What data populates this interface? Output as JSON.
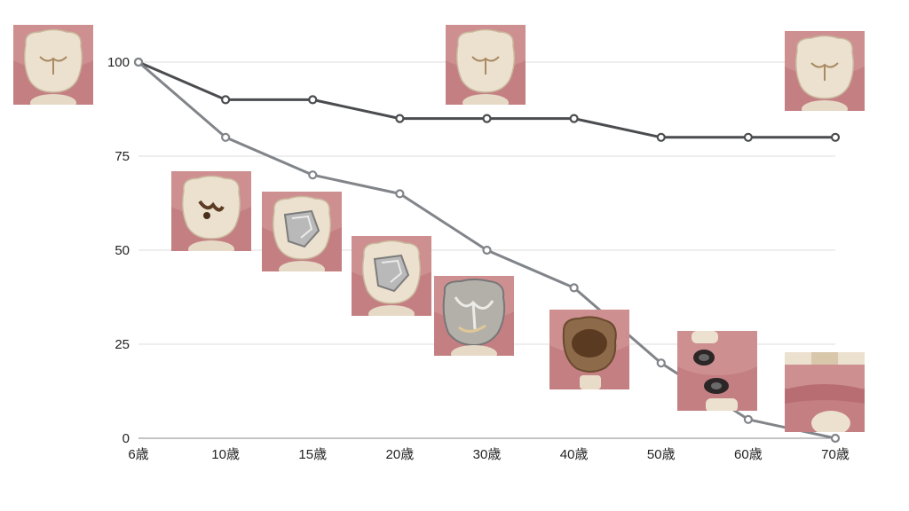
{
  "chart_data": {
    "type": "line",
    "categories": [
      "6歳",
      "10歳",
      "15歳",
      "20歳",
      "30歳",
      "40歳",
      "50歳",
      "60歳",
      "70歳"
    ],
    "ylim": [
      0,
      100
    ],
    "yticks": [
      0,
      25,
      50,
      75,
      100
    ],
    "grid": true,
    "series": [
      {
        "color": "#4a4c4f",
        "values": [
          100,
          90,
          90,
          85,
          85,
          85,
          80,
          80,
          80
        ]
      },
      {
        "color": "#818589",
        "values": [
          100,
          80,
          70,
          65,
          50,
          40,
          20,
          5,
          0
        ]
      }
    ],
    "photos": [
      {
        "name": "healthy-molar-6",
        "state": "healthy"
      },
      {
        "name": "healthy-molar-30",
        "state": "healthy"
      },
      {
        "name": "healthy-molar-70",
        "state": "healthy"
      },
      {
        "name": "cavity-molar-10",
        "state": "cavity"
      },
      {
        "name": "filled-molar-15",
        "state": "filling"
      },
      {
        "name": "filled-molar-20",
        "state": "filling"
      },
      {
        "name": "crowned-molar-30",
        "state": "crown"
      },
      {
        "name": "decayed-molar-40",
        "state": "decayed"
      },
      {
        "name": "root-remains-50",
        "state": "roots"
      },
      {
        "name": "missing-molar-70",
        "state": "missing"
      }
    ]
  }
}
